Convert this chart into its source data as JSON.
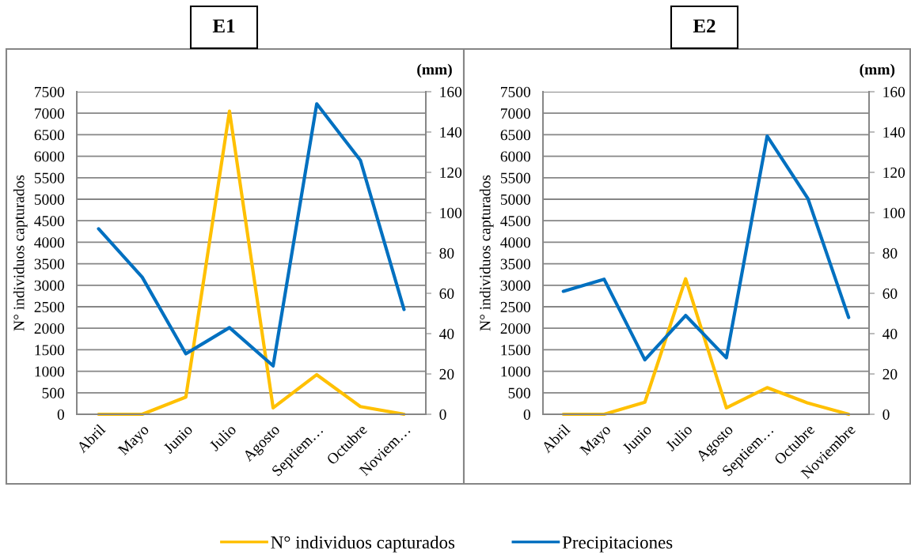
{
  "chart_data": [
    {
      "type": "line",
      "title": "E1",
      "categories": [
        "Abril",
        "Mayo",
        "Junio",
        "Julio",
        "Agosto",
        "Septiem…",
        "Octubre",
        "Noviem…"
      ],
      "series": [
        {
          "name": "N° individuos capturados",
          "color": "#ffc000",
          "values": [
            0,
            0,
            400,
            7050,
            150,
            920,
            180,
            0
          ]
        },
        {
          "name": "Precipitaciones",
          "color": "#0070c0",
          "axis": "y2",
          "values": [
            92,
            68,
            30,
            43,
            24,
            154,
            126,
            52
          ]
        }
      ],
      "ylabel": "N° individuos capturados",
      "y2label": "(mm)",
      "ylim": [
        0,
        7500
      ],
      "yticks": [
        0,
        500,
        1000,
        1500,
        2000,
        2500,
        3000,
        3500,
        4000,
        4500,
        5000,
        5500,
        6000,
        6500,
        7000,
        7500
      ],
      "y2lim": [
        0,
        160
      ],
      "y2ticks": [
        0,
        20,
        40,
        60,
        80,
        100,
        120,
        140,
        160
      ],
      "grid": "y",
      "legend": "bottom"
    },
    {
      "type": "line",
      "title": "E2",
      "categories": [
        "Abril",
        "Mayo",
        "Junio",
        "Julio",
        "Agosto",
        "Septiem…",
        "Octubre",
        "Noviembre"
      ],
      "series": [
        {
          "color": "#ffc000",
          "values": [
            0,
            0,
            280,
            3150,
            150,
            620,
            260,
            0
          ]
        },
        {
          "color": "#0070c0",
          "axis": "y2",
          "values": [
            61,
            67,
            27,
            49,
            28,
            138,
            107,
            48
          ]
        }
      ],
      "ylabel": "N° individuos capturados",
      "y2label": "(mm)",
      "ylim": [
        0,
        7500
      ],
      "yticks": [
        0,
        500,
        1000,
        1500,
        2000,
        2500,
        3000,
        3500,
        4000,
        4500,
        5000,
        5500,
        6000,
        6500,
        7000,
        7500
      ],
      "y2lim": [
        0,
        160
      ],
      "y2ticks": [
        0,
        20,
        40,
        60,
        80,
        100,
        120,
        140,
        160
      ],
      "grid": "y",
      "legend": "bottom"
    }
  ]
}
